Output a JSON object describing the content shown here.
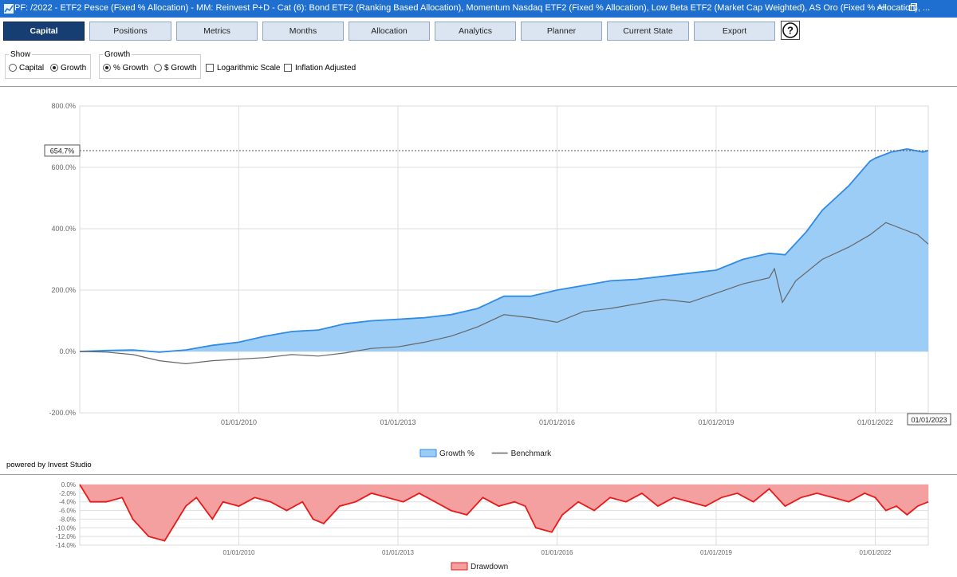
{
  "window": {
    "title": "PF: /2022    -   ETF2 Pesce (Fixed % Allocation)    -   MM: Reinvest P+D    -   Cat (6): Bond ETF2 (Ranking Based Allocation), Momentum Nasdaq ETF2 (Fixed % Allocation), Low Beta ETF2 (Market Cap Weighted), AS Oro (Fixed % Allocation), ...",
    "minimize_icon": "minimize-icon",
    "restore_icon": "restore-icon",
    "accent": "#1e6fd0"
  },
  "tabs": [
    {
      "label": "Capital",
      "active": true
    },
    {
      "label": "Positions"
    },
    {
      "label": "Metrics"
    },
    {
      "label": "Months"
    },
    {
      "label": "Allocation"
    },
    {
      "label": "Analytics"
    },
    {
      "label": "Planner"
    },
    {
      "label": "Current State"
    },
    {
      "label": "Export"
    }
  ],
  "help": {
    "icon": "help-icon",
    "glyph": "?"
  },
  "options": {
    "show": {
      "legend": "Show",
      "capital": "Capital",
      "growth": "Growth",
      "selected": "Growth"
    },
    "growth": {
      "legend": "Growth",
      "pct": "% Growth",
      "usd": "$ Growth",
      "selected": "% Growth"
    },
    "log_scale": {
      "label": "Logarithmic Scale",
      "checked": false
    },
    "inflation": {
      "label": "Inflation Adjusted",
      "checked": false
    }
  },
  "footer": {
    "powered": "powered by Invest Studio"
  },
  "chart_data": [
    {
      "type": "area",
      "y_unit": "%",
      "ylim": [
        -200,
        800
      ],
      "y_ticks": [
        "800.0%",
        "600.0%",
        "400.0%",
        "200.0%",
        "0.0%",
        "-200.0%"
      ],
      "y_tick_values": [
        800,
        600,
        400,
        200,
        0,
        -200
      ],
      "x_ticks": [
        "01/01/2010",
        "01/01/2013",
        "01/01/2016",
        "01/01/2019",
        "01/01/2022"
      ],
      "x_tick_values": [
        2010,
        2013,
        2016,
        2019,
        2022
      ],
      "xlim": [
        2007.0,
        2023.0
      ],
      "x_end_label": "01/01/2023",
      "current_value_label": "654.7%",
      "current_value": 654.7,
      "grid": true,
      "legend_position": "bottom",
      "series": [
        {
          "name": "Growth %",
          "color": "#2f8be6",
          "fill": "#9ccdf6",
          "x": [
            2007.0,
            2007.5,
            2008.0,
            2008.5,
            2009.0,
            2009.5,
            2010.0,
            2010.5,
            2011.0,
            2011.5,
            2012.0,
            2012.5,
            2013.0,
            2013.5,
            2014.0,
            2014.5,
            2015.0,
            2015.5,
            2016.0,
            2016.5,
            2017.0,
            2017.5,
            2018.0,
            2018.5,
            2019.0,
            2019.5,
            2020.0,
            2020.3,
            2020.7,
            2021.0,
            2021.5,
            2021.9,
            2022.0,
            2022.3,
            2022.6,
            2022.9,
            2023.0
          ],
          "values": [
            0,
            3,
            5,
            -2,
            5,
            20,
            30,
            50,
            65,
            70,
            90,
            100,
            105,
            110,
            120,
            140,
            180,
            180,
            200,
            215,
            230,
            235,
            245,
            255,
            265,
            300,
            320,
            315,
            390,
            460,
            540,
            620,
            630,
            650,
            660,
            650,
            654.7
          ]
        },
        {
          "name": "Benchmark",
          "color": "#666666",
          "x": [
            2007.0,
            2007.5,
            2008.0,
            2008.5,
            2009.0,
            2009.5,
            2010.0,
            2010.5,
            2011.0,
            2011.5,
            2012.0,
            2012.5,
            2013.0,
            2013.5,
            2014.0,
            2014.5,
            2015.0,
            2015.5,
            2016.0,
            2016.5,
            2017.0,
            2017.5,
            2018.0,
            2018.5,
            2019.0,
            2019.5,
            2020.0,
            2020.1,
            2020.25,
            2020.5,
            2021.0,
            2021.5,
            2021.9,
            2022.2,
            2022.5,
            2022.8,
            2023.0
          ],
          "values": [
            0,
            -2,
            -10,
            -30,
            -40,
            -30,
            -25,
            -20,
            -10,
            -15,
            -5,
            10,
            15,
            30,
            50,
            80,
            120,
            110,
            95,
            130,
            140,
            155,
            170,
            160,
            190,
            220,
            240,
            270,
            160,
            230,
            300,
            340,
            380,
            420,
            400,
            380,
            350
          ]
        }
      ]
    },
    {
      "type": "area",
      "y_unit": "%",
      "ylim": [
        -14,
        0
      ],
      "y_ticks": [
        "0.0%",
        "-2.0%",
        "-4.0%",
        "-6.0%",
        "-8.0%",
        "-10.0%",
        "-12.0%",
        "-14.0%"
      ],
      "y_tick_values": [
        0,
        -2,
        -4,
        -6,
        -8,
        -10,
        -12,
        -14
      ],
      "x_ticks": [
        "01/01/2010",
        "01/01/2013",
        "01/01/2016",
        "01/01/2019",
        "01/01/2022"
      ],
      "x_tick_values": [
        2010,
        2013,
        2016,
        2019,
        2022
      ],
      "xlim": [
        2007.0,
        2023.0
      ],
      "grid": true,
      "legend_position": "bottom",
      "series": [
        {
          "name": "Drawdown",
          "color": "#e81919",
          "fill": "#f4a0a0",
          "x": [
            2007.0,
            2007.2,
            2007.5,
            2007.8,
            2008.0,
            2008.3,
            2008.6,
            2008.8,
            2009.0,
            2009.2,
            2009.5,
            2009.7,
            2010.0,
            2010.3,
            2010.6,
            2010.9,
            2011.2,
            2011.4,
            2011.6,
            2011.9,
            2012.2,
            2012.5,
            2012.8,
            2013.1,
            2013.4,
            2013.7,
            2014.0,
            2014.3,
            2014.6,
            2014.9,
            2015.2,
            2015.4,
            2015.6,
            2015.9,
            2016.1,
            2016.4,
            2016.7,
            2017.0,
            2017.3,
            2017.6,
            2017.9,
            2018.2,
            2018.5,
            2018.8,
            2019.1,
            2019.4,
            2019.7,
            2020.0,
            2020.3,
            2020.6,
            2020.9,
            2021.2,
            2021.5,
            2021.8,
            2022.0,
            2022.2,
            2022.4,
            2022.6,
            2022.8,
            2023.0
          ],
          "values": [
            0,
            -4,
            -4,
            -3,
            -8,
            -12,
            -13,
            -9,
            -5,
            -3,
            -8,
            -4,
            -5,
            -3,
            -4,
            -6,
            -4,
            -8,
            -9,
            -5,
            -4,
            -2,
            -3,
            -4,
            -2,
            -4,
            -6,
            -7,
            -3,
            -5,
            -4,
            -5,
            -10,
            -11,
            -7,
            -4,
            -6,
            -3,
            -4,
            -2,
            -5,
            -3,
            -4,
            -5,
            -3,
            -2,
            -4,
            -1,
            -5,
            -3,
            -2,
            -3,
            -4,
            -2,
            -3,
            -6,
            -5,
            -7,
            -5,
            -4
          ]
        }
      ]
    }
  ]
}
